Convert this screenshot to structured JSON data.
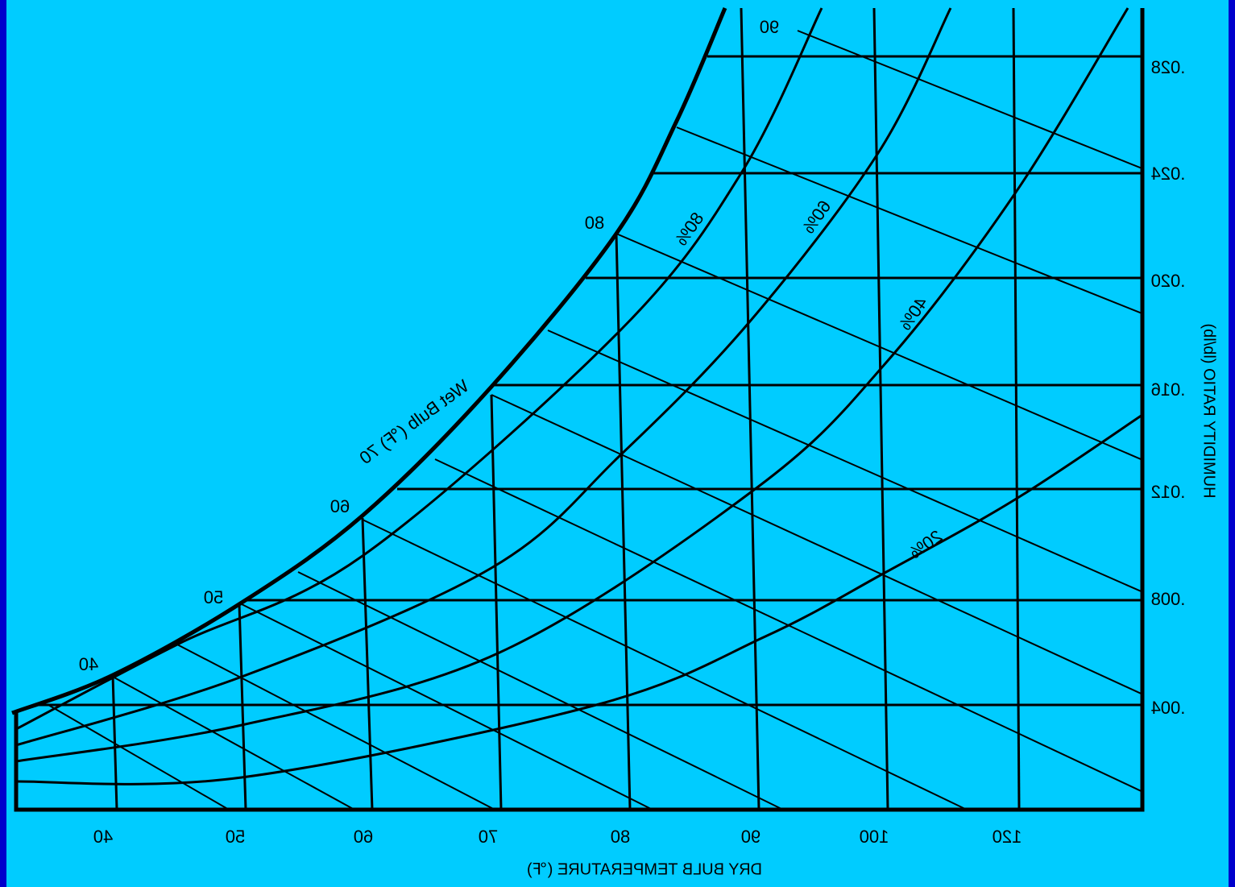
{
  "diagram": {
    "humidity_ticks": [
      ".028",
      ".024",
      ".020",
      ".016",
      ".012",
      ".008",
      ".004"
    ],
    "dry_bulb_ticks": [
      "40",
      "50",
      "60",
      "70",
      "80",
      "90",
      "100",
      "120"
    ],
    "saturation_labels": [
      "90",
      "80",
      "60",
      "50",
      "40"
    ],
    "rh_labels": [
      "80%",
      "60%",
      "40%",
      "20%"
    ],
    "wet_bulb_label": "Wet Bulb (℉) 70",
    "x_axis_title": "DRY BULB TEMPERATURE (℉)",
    "y_axis_title": "HUMIDITY RATIO (lb/lb)"
  }
}
